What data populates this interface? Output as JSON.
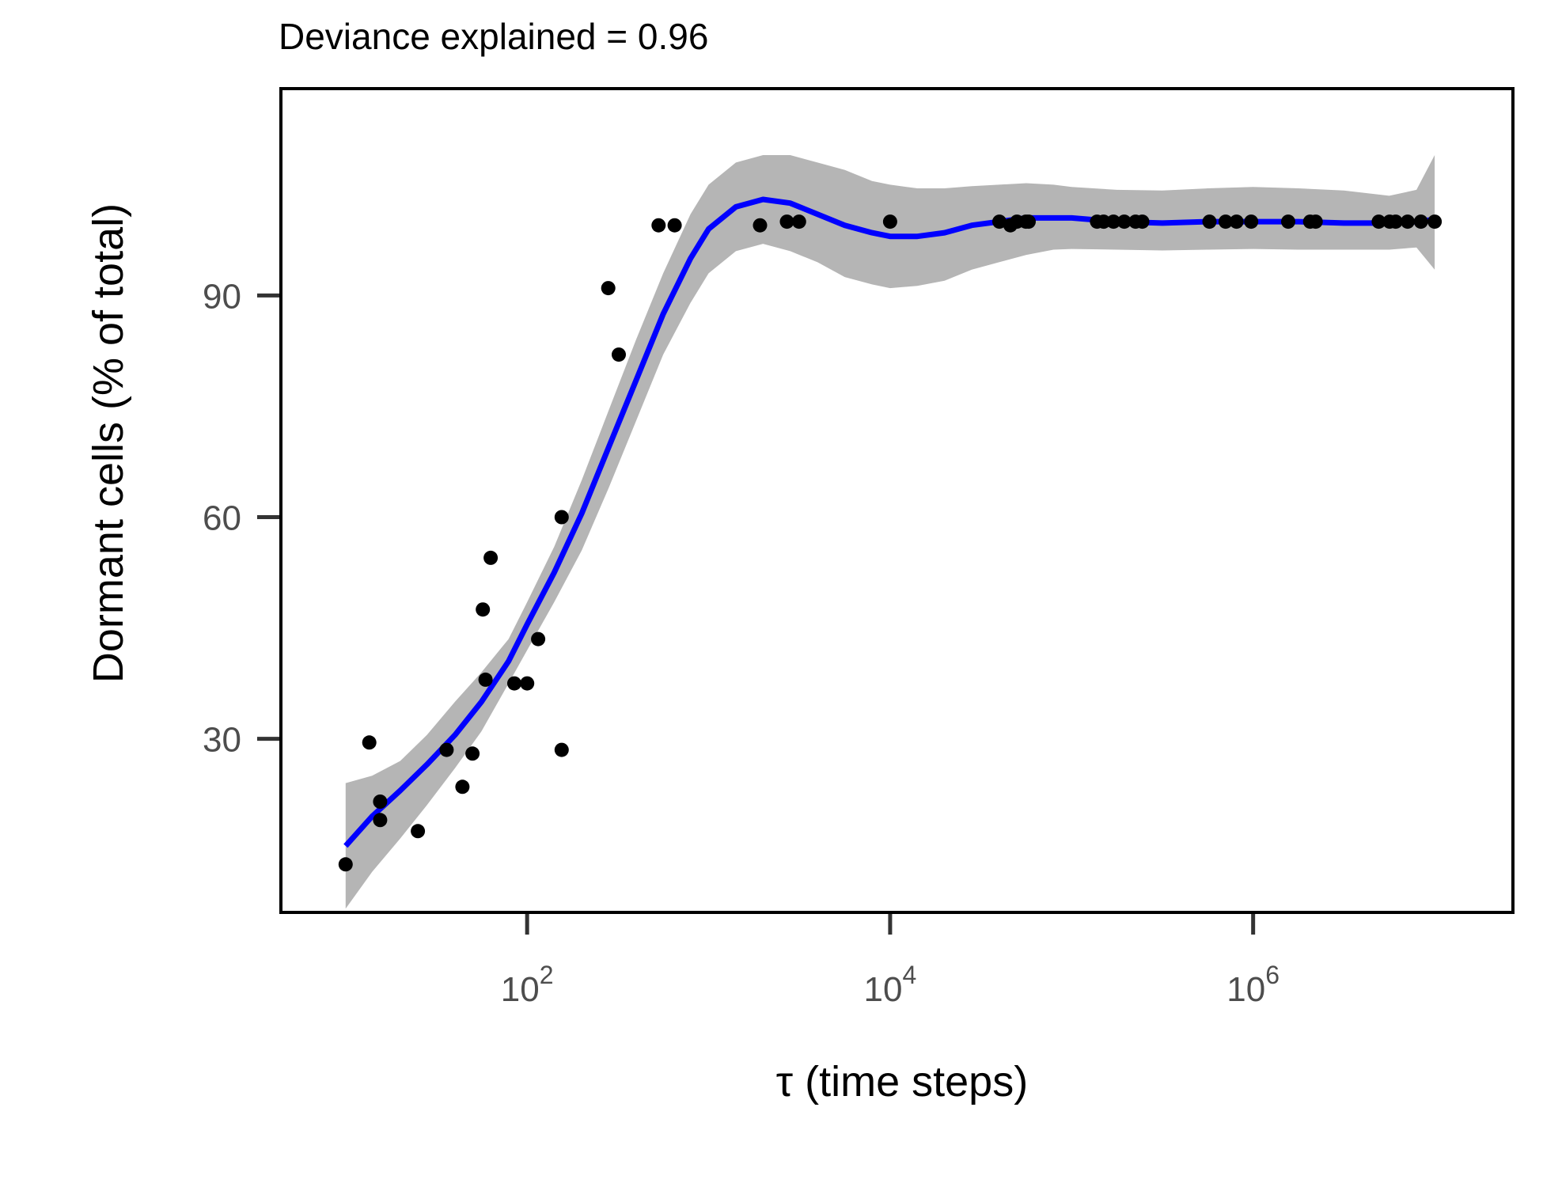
{
  "chart_data": {
    "type": "scatter",
    "title": "Deviance explained = 0.96",
    "xlabel": "τ (time steps)",
    "ylabel": "Dormant cells (% of total)",
    "x_scale": "log10",
    "xlim": [
      4.4,
      27000000
    ],
    "ylim": [
      6.5,
      118
    ],
    "x_ticks": [
      {
        "base": "10",
        "exp": "2",
        "value": 100
      },
      {
        "base": "10",
        "exp": "4",
        "value": 10000
      },
      {
        "base": "10",
        "exp": "6",
        "value": 1000000
      }
    ],
    "y_ticks": [
      {
        "label": "30",
        "value": 30
      },
      {
        "label": "60",
        "value": 60
      },
      {
        "label": "90",
        "value": 90
      }
    ],
    "grid": false,
    "legend": "none",
    "colors": {
      "points": "#000000",
      "smooth_line": "#0000ff",
      "confidence_band": "#b5b5b5",
      "axis": "#333333",
      "frame": "#000000"
    },
    "series": [
      {
        "kind": "points",
        "x": [
          10,
          13.5,
          15.5,
          15.5,
          25,
          36,
          44,
          50,
          57,
          59,
          63,
          85,
          100,
          115,
          155,
          155,
          280,
          320,
          530,
          650,
          1920,
          2700,
          3150,
          10000,
          40000,
          46000,
          50000,
          56000,
          58000,
          138000,
          150000,
          170000,
          195000,
          225000,
          245000,
          575000,
          705000,
          810000,
          975000,
          1560000,
          2060000,
          2210000,
          4920000,
          5650000,
          6100000,
          7100000,
          8400000,
          10000000
        ],
        "y": [
          13,
          29.5,
          19,
          21.5,
          17.5,
          28.5,
          23.5,
          28,
          47.5,
          38,
          54.5,
          37.5,
          37.5,
          43.5,
          28.5,
          60,
          91,
          82,
          99.5,
          99.5,
          99.5,
          100,
          100,
          100,
          100,
          99.5,
          100,
          100,
          100,
          100,
          100,
          100,
          100,
          100,
          100,
          100,
          100,
          100,
          100,
          100,
          100,
          100,
          100,
          100,
          100,
          100,
          100,
          100
        ]
      },
      {
        "kind": "smooth",
        "x": [
          10,
          14,
          20,
          28,
          40,
          56,
          79,
          100,
          141,
          200,
          282,
          398,
          562,
          794,
          1000,
          1413,
          1995,
          2818,
          3981,
          5623,
          7943,
          10000,
          14125,
          19953,
          28184,
          39811,
          56234,
          79433,
          100000,
          177828,
          316228,
          562341,
          1000000,
          1778279,
          3162278,
          5623413,
          7943282,
          10000000
        ],
        "y": [
          15.5,
          19.5,
          23,
          26.5,
          30.5,
          35,
          40.5,
          45.5,
          52.5,
          60.5,
          69.5,
          78.5,
          87.5,
          95,
          99,
          102,
          103,
          102.5,
          101,
          99.5,
          98.5,
          98,
          98,
          98.5,
          99.5,
          100,
          100.5,
          100.5,
          100.5,
          100,
          99.8,
          100,
          100,
          100,
          99.8,
          99.8,
          100,
          100.3
        ]
      },
      {
        "kind": "band",
        "x": [
          10,
          14,
          20,
          28,
          40,
          56,
          79,
          100,
          141,
          200,
          282,
          398,
          562,
          794,
          1000,
          1413,
          1995,
          2818,
          3981,
          5623,
          7943,
          10000,
          14125,
          19953,
          28184,
          39811,
          56234,
          79433,
          100000,
          177828,
          316228,
          562341,
          1000000,
          1778279,
          3162278,
          5623413,
          7943282,
          10000000
        ],
        "ylow": [
          7,
          12,
          16.5,
          21,
          26,
          31,
          37.5,
          42,
          48.5,
          55.5,
          64,
          73,
          82,
          89,
          93,
          96,
          97,
          96,
          94.5,
          92.5,
          91.5,
          91,
          91.3,
          92,
          93.5,
          94.5,
          95.5,
          96.2,
          96.3,
          96.2,
          96.1,
          96.2,
          96.3,
          96.2,
          96.2,
          96.2,
          96.5,
          93.5
        ],
        "yhigh": [
          24,
          25,
          27,
          30.5,
          35,
          39,
          43.5,
          48.5,
          56,
          65,
          74.5,
          84,
          93,
          101,
          105,
          108,
          109,
          109,
          108,
          107,
          105.5,
          105,
          104.5,
          104.5,
          104.8,
          105,
          105.2,
          105,
          104.7,
          104.3,
          104.2,
          104.5,
          104.7,
          104.5,
          104.2,
          103.5,
          104.3,
          109
        ]
      }
    ]
  }
}
